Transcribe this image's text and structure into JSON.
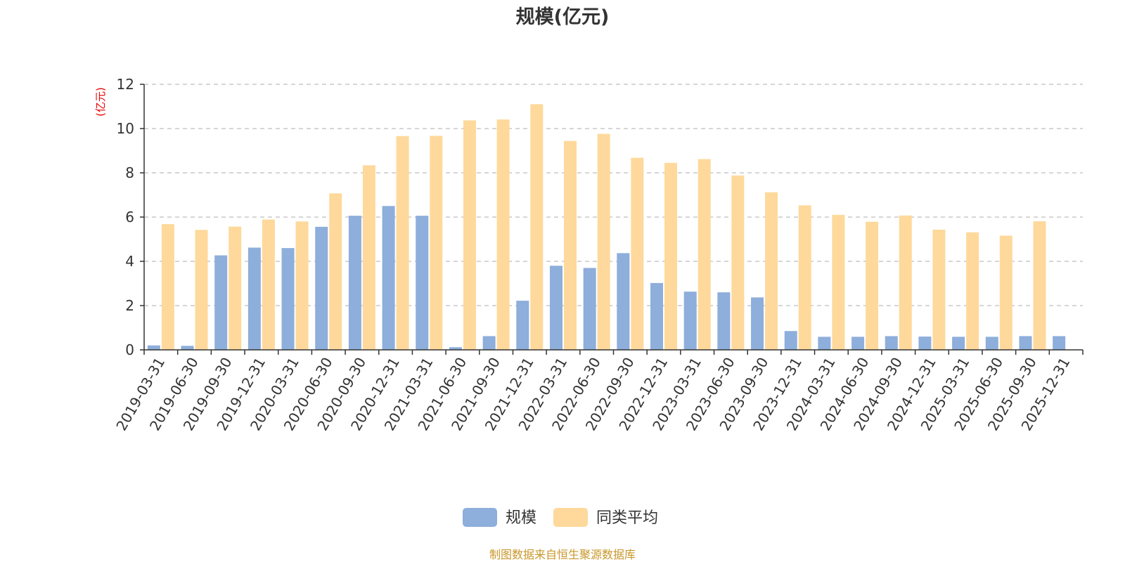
{
  "chart_data": {
    "type": "bar",
    "title": "规模(亿元)",
    "ylabel": "(亿元)",
    "xlabel": "",
    "ylim": [
      0,
      12
    ],
    "yticks": [
      "0",
      "2",
      "4",
      "6",
      "8",
      "10",
      "12"
    ],
    "grid": true,
    "legend_position": "bottom-center",
    "categories": [
      "2019-03-31",
      "2019-06-30",
      "2019-09-30",
      "2019-12-31",
      "2020-03-31",
      "2020-06-30",
      "2020-09-30",
      "2020-12-31",
      "2021-03-31",
      "2021-06-30",
      "2021-09-30",
      "2021-12-31",
      "2022-03-31",
      "2022-06-30",
      "2022-09-30",
      "2022-12-31",
      "2023-03-31",
      "2023-06-30",
      "2023-09-30",
      "2023-12-31",
      "2024-03-31",
      "2024-06-30",
      "2024-09-30",
      "2024-12-31",
      "2025-03-31",
      "2025-06-30",
      "2025-09-30",
      "2025-12-31"
    ],
    "series": [
      {
        "name": "规模",
        "color": "#8eaedb",
        "values": [
          0.2,
          0.18,
          4.27,
          4.62,
          4.6,
          5.56,
          6.06,
          6.5,
          6.06,
          0.12,
          0.62,
          2.22,
          3.8,
          3.7,
          4.37,
          3.02,
          2.63,
          2.6,
          2.37,
          0.85,
          0.59,
          0.59,
          0.62,
          0.6,
          0.59,
          0.59,
          0.62,
          0.62
        ]
      },
      {
        "name": "同类平均",
        "color": "#fed99b",
        "values": [
          5.68,
          5.42,
          5.57,
          5.89,
          5.8,
          7.07,
          8.34,
          9.66,
          9.67,
          10.37,
          10.41,
          11.1,
          9.44,
          9.76,
          8.68,
          8.45,
          8.62,
          7.88,
          7.12,
          6.53,
          6.1,
          5.79,
          6.07,
          5.43,
          5.31,
          5.16,
          5.81,
          null
        ]
      }
    ]
  },
  "legend": {
    "items": [
      {
        "label": "规模",
        "color": "#8eaedb"
      },
      {
        "label": "同类平均",
        "color": "#fed99b"
      }
    ]
  },
  "footer": {
    "source": "制图数据来自恒生聚源数据库"
  }
}
